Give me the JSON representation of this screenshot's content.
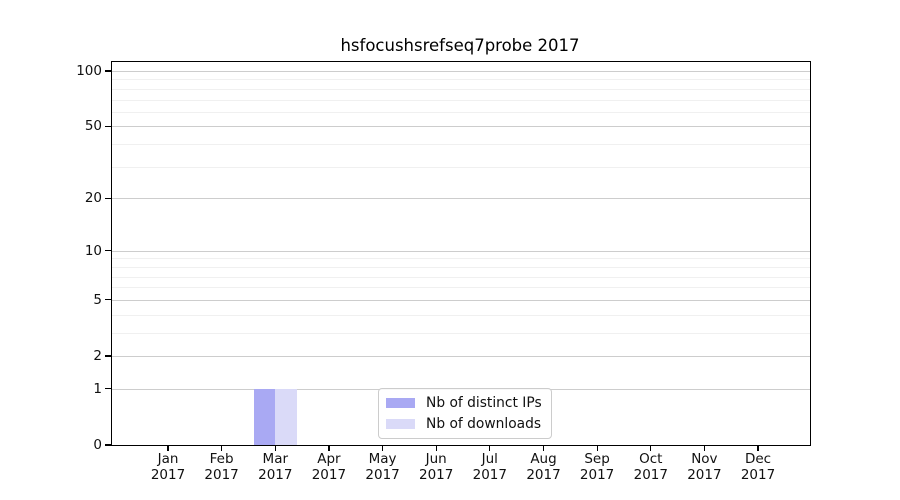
{
  "title": "hsfocushsrefseq7probe 2017",
  "colors": {
    "distinct_ips_bar": "#a9a9f3",
    "downloads_bar": "#dadaf8",
    "major_gridline": "#cdcdcd",
    "minor_gridline": "#f0f0f0",
    "axis_spine": "#000000",
    "legend_border": "#cccccc"
  },
  "chart_data": {
    "type": "bar",
    "title": "hsfocushsrefseq7probe 2017",
    "categories": [
      "Jan 2017",
      "Feb 2017",
      "Mar 2017",
      "Apr 2017",
      "May 2017",
      "Jun 2017",
      "Jul 2017",
      "Aug 2017",
      "Sep 2017",
      "Oct 2017",
      "Nov 2017",
      "Dec 2017"
    ],
    "series": [
      {
        "name": "Nb of distinct IPs",
        "color": "#a9a9f3",
        "values": [
          0,
          0,
          1,
          0,
          0,
          0,
          0,
          0,
          0,
          0,
          0,
          0
        ]
      },
      {
        "name": "Nb of downloads",
        "color": "#dadaf8",
        "values": [
          0,
          0,
          1,
          0,
          0,
          0,
          0,
          0,
          0,
          0,
          0,
          0
        ]
      }
    ],
    "xlabel": "",
    "ylabel": "",
    "yscale": "log(1+y)",
    "ylim": [
      0,
      110
    ],
    "yticks": [
      0,
      1,
      2,
      5,
      10,
      20,
      50,
      100
    ],
    "minor_yticks": [
      3,
      4,
      6,
      7,
      8,
      9,
      30,
      40,
      60,
      70,
      80,
      90
    ],
    "grid": true,
    "legend_position": "inside bottom-center"
  }
}
